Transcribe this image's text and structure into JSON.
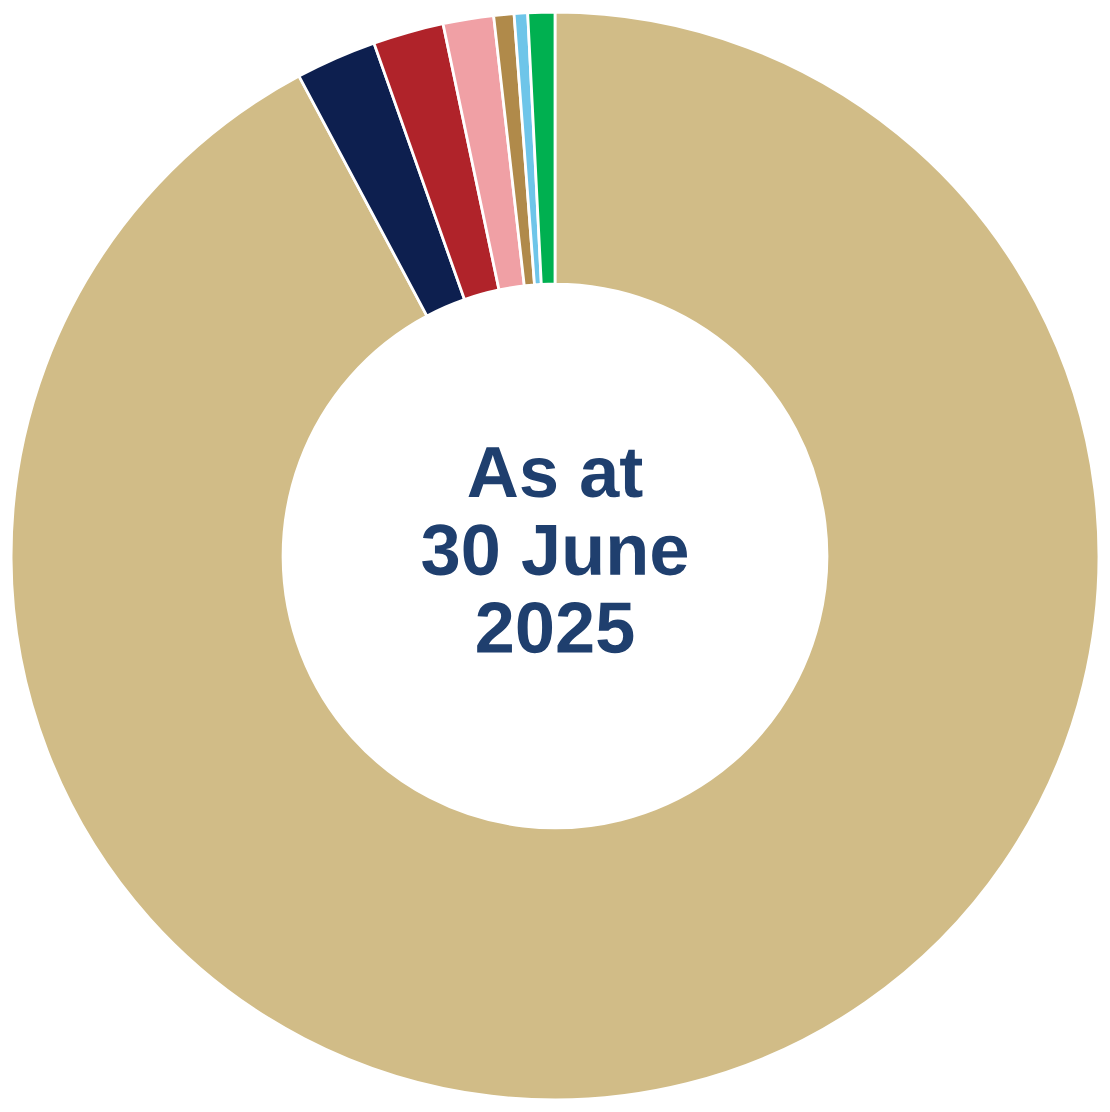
{
  "chart_data": {
    "type": "donut",
    "categories": [
      null,
      null,
      null,
      null,
      null,
      null,
      null
    ],
    "values": [
      92.2,
      2.4,
      2.1,
      1.5,
      0.6,
      0.4,
      0.8
    ],
    "colors": [
      "#d1bc87",
      "#0d1f4f",
      "#b0232a",
      "#f0a0a5",
      "#b08a4a",
      "#6ec5e9",
      "#00b050"
    ],
    "annotations": [
      "As at\n30 June\n2025"
    ]
  }
}
